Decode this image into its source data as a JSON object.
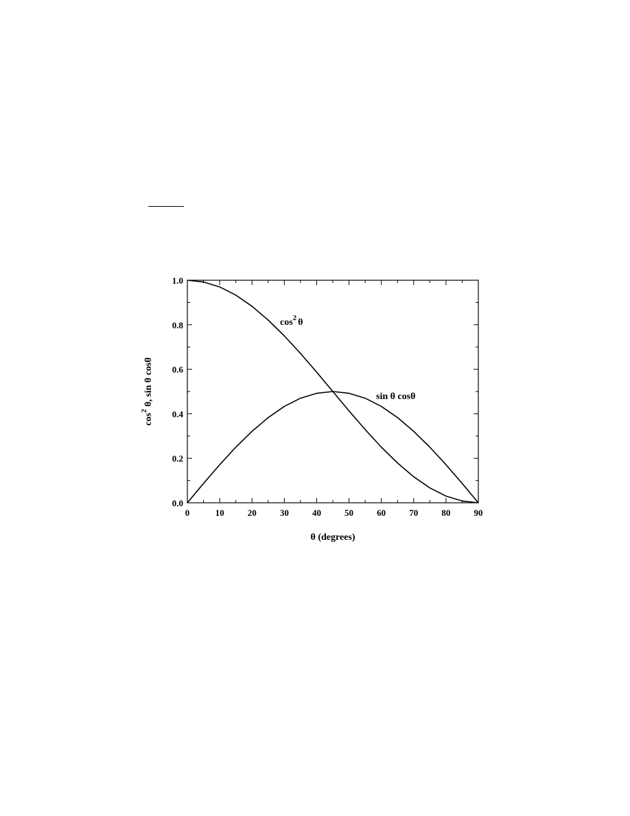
{
  "chart_data": {
    "type": "line",
    "title": "",
    "xlabel": "θ (degrees)",
    "ylabel": {
      "part1": "cos",
      "sup": "2",
      "part2": " θ,  sin θ cosθ"
    },
    "xlim": [
      0,
      90
    ],
    "ylim": [
      0.0,
      1.0
    ],
    "x_ticks": [
      0,
      10,
      20,
      30,
      40,
      50,
      60,
      70,
      80,
      90
    ],
    "x_tick_labels": [
      "0",
      "10",
      "20",
      "30",
      "40",
      "50",
      "60",
      "70",
      "80",
      "90"
    ],
    "y_ticks": [
      0.0,
      0.2,
      0.4,
      0.6,
      0.8,
      1.0
    ],
    "y_tick_labels": [
      "0.0",
      "0.2",
      "0.4",
      "0.6",
      "0.8",
      "1.0"
    ],
    "grid": false,
    "x": [
      0,
      5,
      10,
      15,
      20,
      25,
      30,
      35,
      40,
      45,
      50,
      55,
      60,
      65,
      70,
      75,
      80,
      85,
      90
    ],
    "series": [
      {
        "name": "cos²θ",
        "label_main": "cos",
        "label_sup": "2",
        "label_end": "θ",
        "values": [
          1.0,
          0.992,
          0.97,
          0.933,
          0.883,
          0.821,
          0.75,
          0.671,
          0.587,
          0.5,
          0.413,
          0.329,
          0.25,
          0.179,
          0.117,
          0.067,
          0.03,
          0.008,
          0.0
        ]
      },
      {
        "name": "sin θ cosθ",
        "label_main": "sin θ cosθ",
        "label_sup": "",
        "label_end": "",
        "values": [
          0.0,
          0.087,
          0.171,
          0.25,
          0.321,
          0.383,
          0.433,
          0.47,
          0.492,
          0.5,
          0.492,
          0.47,
          0.433,
          0.383,
          0.321,
          0.25,
          0.171,
          0.087,
          0.0
        ]
      }
    ]
  }
}
